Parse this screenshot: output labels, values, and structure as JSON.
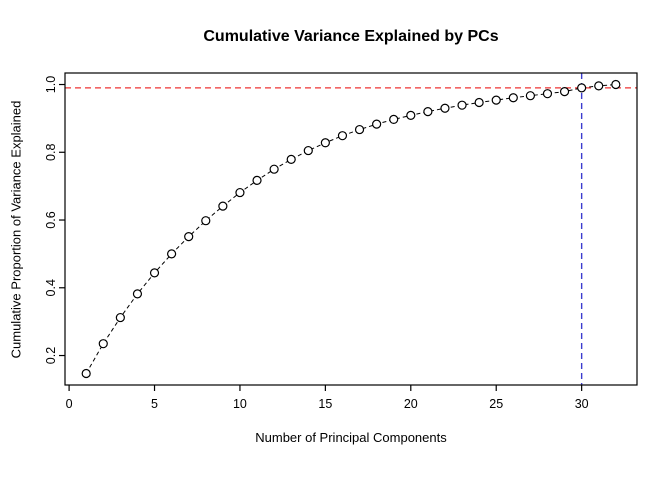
{
  "title": "Cumulative Variance Explained by PCs",
  "chart_data": {
    "type": "scatter",
    "title": "Cumulative Variance Explained by PCs",
    "xlabel": "Number of Principal Components",
    "ylabel": "Cumulative Proportion of Variance Explained",
    "x": [
      1,
      2,
      3,
      4,
      5,
      6,
      7,
      8,
      9,
      10,
      11,
      12,
      13,
      14,
      15,
      16,
      17,
      18,
      19,
      20,
      21,
      22,
      23,
      24,
      25,
      26,
      27,
      28,
      29,
      30,
      31,
      32
    ],
    "y": [
      0.147,
      0.235,
      0.312,
      0.382,
      0.444,
      0.5,
      0.551,
      0.598,
      0.641,
      0.681,
      0.717,
      0.75,
      0.779,
      0.805,
      0.828,
      0.849,
      0.867,
      0.883,
      0.897,
      0.909,
      0.92,
      0.93,
      0.939,
      0.947,
      0.954,
      0.961,
      0.967,
      0.973,
      0.979,
      0.99,
      0.996,
      1.0
    ],
    "xlim": [
      -0.24,
      33.24
    ],
    "ylim": [
      0.113,
      1.034
    ],
    "xtick_values": [
      0,
      5,
      10,
      15,
      20,
      25,
      30
    ],
    "xtick_labels": [
      "0",
      "5",
      "10",
      "15",
      "20",
      "25",
      "30"
    ],
    "ytick_values": [
      0.2,
      0.4,
      0.6,
      0.8,
      1.0
    ],
    "ytick_labels": [
      "0.2",
      "0.4",
      "0.6",
      "0.8",
      "1.0"
    ],
    "grid": false,
    "legend": "none",
    "point_style": "open-circle",
    "line_style": "dashed",
    "hline": {
      "y": 0.99,
      "color": "#ee3333",
      "style": "dashed"
    },
    "vline": {
      "x": 30,
      "color": "#3b3bcf",
      "style": "dashed"
    },
    "series_color": "#000000",
    "background": "#ffffff"
  }
}
